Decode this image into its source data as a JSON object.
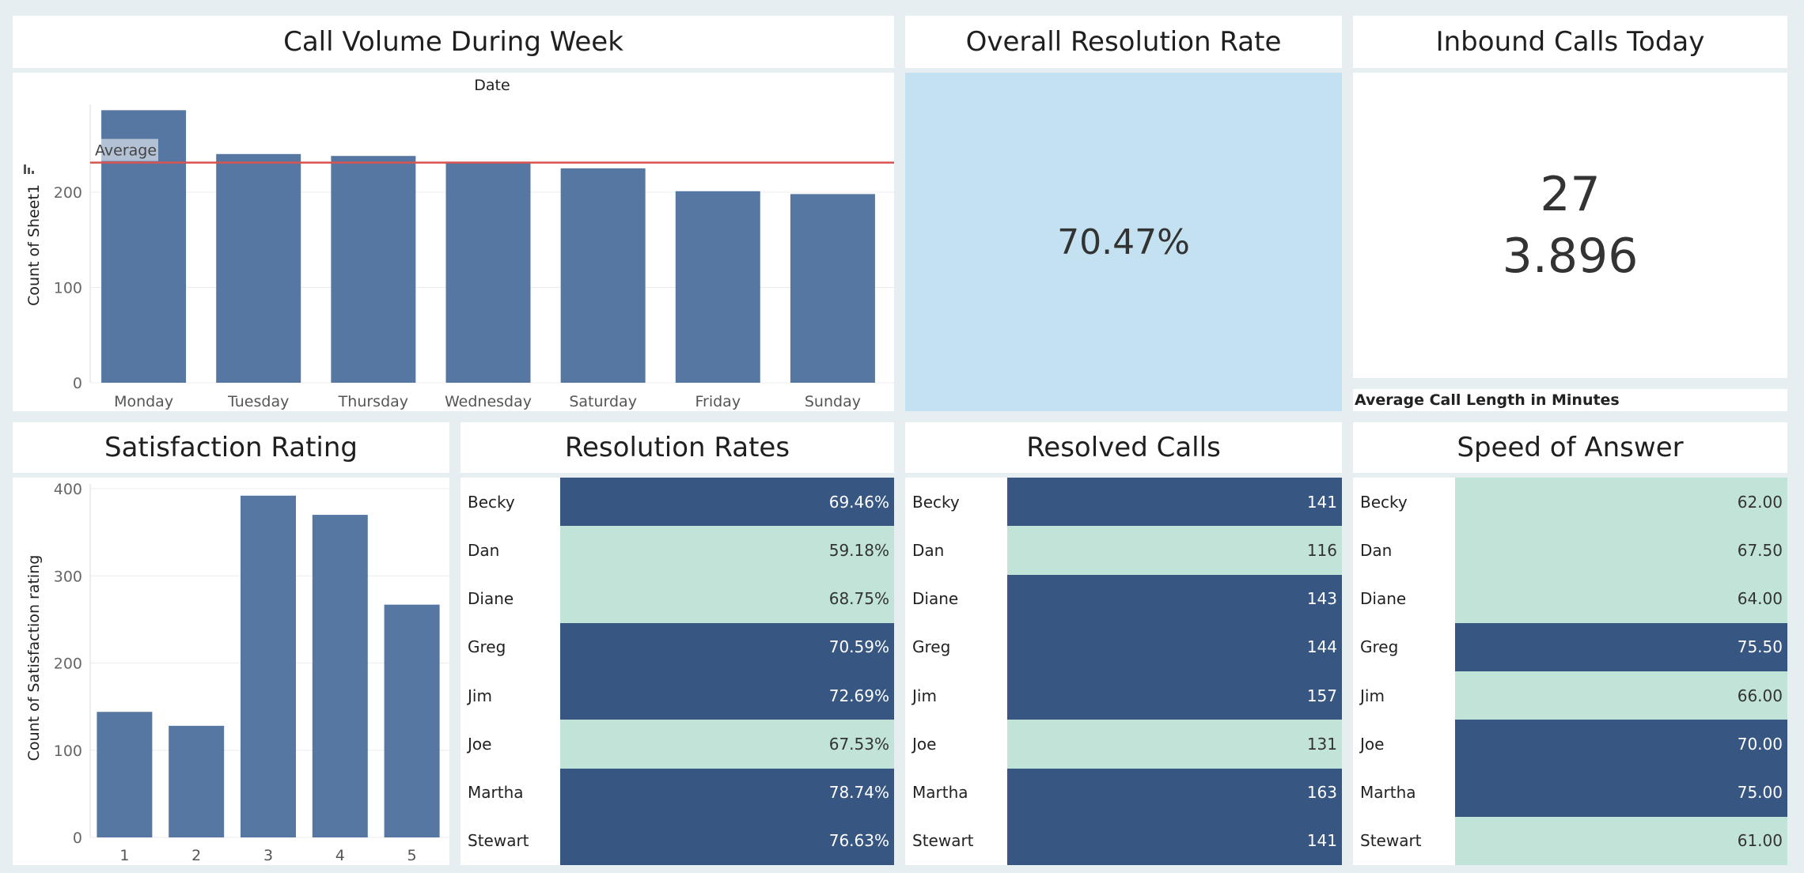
{
  "titles": {
    "call_volume": "Call Volume During Week",
    "resolution_rate": "Overall Resolution Rate",
    "inbound_calls": "Inbound Calls Today",
    "satisfaction": "Satisfaction Rating",
    "resolution_rates": "Resolution Rates",
    "resolved_calls": "Resolved Calls",
    "speed_of_answer": "Speed of Answer"
  },
  "kpis": {
    "overall_resolution_rate": "70.47%",
    "inbound_calls_today": "27",
    "average_call_length": "3.896",
    "average_call_length_label": "Average Call Length in Minutes"
  },
  "colors": {
    "bar": "#5777a3",
    "average_line": "#d9534f",
    "kpi_background": "#c3e1f1",
    "table_dark": "#375782",
    "table_light": "#c2e4d8"
  },
  "chart_data": [
    {
      "type": "bar",
      "title": "Date",
      "categories": [
        "Monday",
        "Tuesday",
        "Thursday",
        "Wednesday",
        "Saturday",
        "Friday",
        "Sunday"
      ],
      "values": [
        286,
        240,
        238,
        232,
        225,
        201,
        198
      ],
      "ylabel": "Count of Sheet1",
      "yticks": [
        0,
        100,
        200
      ],
      "ylim": [
        0,
        300
      ],
      "reference_line": {
        "label": "Average",
        "value": 231
      },
      "grid": true
    },
    {
      "type": "bar",
      "categories": [
        "1",
        "2",
        "3",
        "4",
        "5"
      ],
      "values": [
        144,
        128,
        392,
        370,
        267
      ],
      "ylabel": "Count of Satisfaction rating",
      "yticks": [
        0,
        100,
        200,
        300,
        400
      ],
      "ylim": [
        0,
        400
      ],
      "grid": true
    }
  ],
  "tables": {
    "resolution_rates": [
      {
        "name": "Becky",
        "value": "69.46%",
        "shade": "dark"
      },
      {
        "name": "Dan",
        "value": "59.18%",
        "shade": "light"
      },
      {
        "name": "Diane",
        "value": "68.75%",
        "shade": "light"
      },
      {
        "name": "Greg",
        "value": "70.59%",
        "shade": "dark"
      },
      {
        "name": "Jim",
        "value": "72.69%",
        "shade": "dark"
      },
      {
        "name": "Joe",
        "value": "67.53%",
        "shade": "light"
      },
      {
        "name": "Martha",
        "value": "78.74%",
        "shade": "dark"
      },
      {
        "name": "Stewart",
        "value": "76.63%",
        "shade": "dark"
      }
    ],
    "resolved_calls": [
      {
        "name": "Becky",
        "value": "141",
        "shade": "dark"
      },
      {
        "name": "Dan",
        "value": "116",
        "shade": "light"
      },
      {
        "name": "Diane",
        "value": "143",
        "shade": "dark"
      },
      {
        "name": "Greg",
        "value": "144",
        "shade": "dark"
      },
      {
        "name": "Jim",
        "value": "157",
        "shade": "dark"
      },
      {
        "name": "Joe",
        "value": "131",
        "shade": "light"
      },
      {
        "name": "Martha",
        "value": "163",
        "shade": "dark"
      },
      {
        "name": "Stewart",
        "value": "141",
        "shade": "dark"
      }
    ],
    "speed_of_answer": [
      {
        "name": "Becky",
        "value": "62.00",
        "shade": "light"
      },
      {
        "name": "Dan",
        "value": "67.50",
        "shade": "light"
      },
      {
        "name": "Diane",
        "value": "64.00",
        "shade": "light"
      },
      {
        "name": "Greg",
        "value": "75.50",
        "shade": "dark"
      },
      {
        "name": "Jim",
        "value": "66.00",
        "shade": "light"
      },
      {
        "name": "Joe",
        "value": "70.00",
        "shade": "dark"
      },
      {
        "name": "Martha",
        "value": "75.00",
        "shade": "dark"
      },
      {
        "name": "Stewart",
        "value": "61.00",
        "shade": "light"
      }
    ]
  }
}
